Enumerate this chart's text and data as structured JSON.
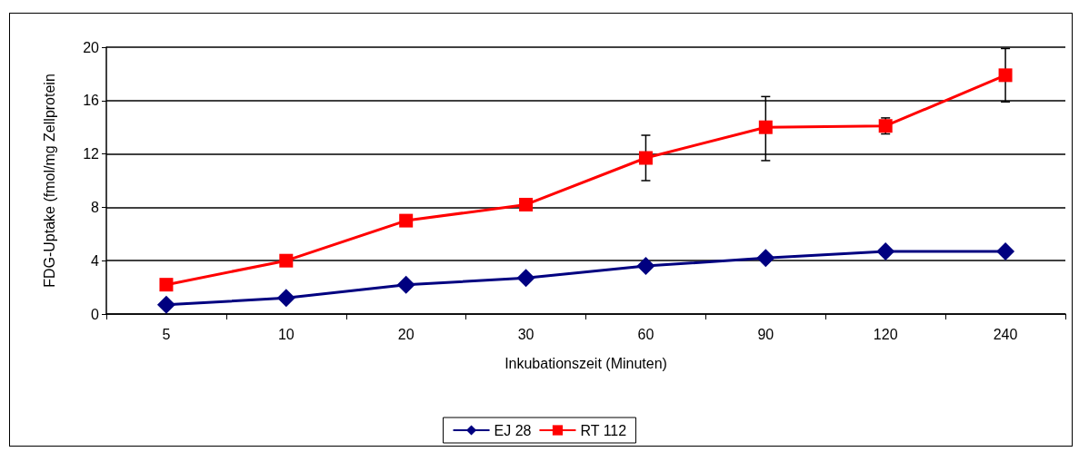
{
  "chart_data": {
    "type": "line",
    "xlabel": "Inkubationszeit (Minuten)",
    "ylabel": "FDG-Uptake (fmol/mg Zellprotein",
    "categories": [
      "5",
      "10",
      "20",
      "30",
      "60",
      "90",
      "120",
      "240"
    ],
    "series": [
      {
        "name": "EJ 28",
        "color": "#000080",
        "marker": "diamond",
        "values": [
          0.7,
          1.2,
          2.2,
          2.7,
          3.6,
          4.2,
          4.7,
          4.7
        ]
      },
      {
        "name": "RT 112",
        "color": "#ff0000",
        "marker": "square",
        "values": [
          2.2,
          4.0,
          7.0,
          8.2,
          11.7,
          14.0,
          14.1,
          17.9
        ],
        "errors": [
          null,
          null,
          null,
          null,
          [
            10.0,
            13.4
          ],
          [
            11.5,
            16.3
          ],
          [
            13.5,
            14.7
          ],
          [
            15.9,
            19.9
          ]
        ]
      }
    ],
    "ylim": [
      0,
      20
    ],
    "yticks": [
      0,
      4,
      8,
      12,
      16,
      20
    ],
    "grid": "y",
    "legend": "bottom",
    "line_style": "solid"
  }
}
